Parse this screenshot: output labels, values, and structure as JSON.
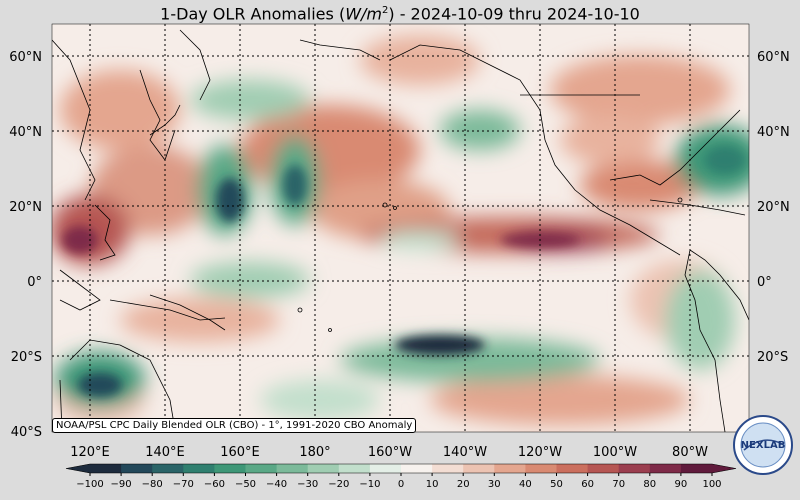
{
  "title": "1-Day OLR Anomalies (W/m²) - 2024-10-09 thru 2024-10-10",
  "title_parts": {
    "prefix": "1-Day OLR Anomalies (",
    "unit_base": "W/m",
    "unit_exp": "2",
    "suffix": ") - 2024-10-09 thru 2024-10-10"
  },
  "credit": "NOAA/PSL CPC Daily Blended OLR (CBO) - 1°, 1991-2020 CBO Anomaly",
  "logo_text": "NEXLAB",
  "lat_labels": [
    "60°N",
    "40°N",
    "20°N",
    "0°",
    "20°S",
    "40°S"
  ],
  "lon_labels": [
    "120°E",
    "140°E",
    "160°E",
    "180°",
    "160°W",
    "140°W",
    "120°W",
    "100°W",
    "80°W"
  ],
  "colorbar": {
    "ticks": [
      "−100",
      "−90",
      "−80",
      "−70",
      "−60",
      "−50",
      "−40",
      "−30",
      "−20",
      "−10",
      "0",
      "10",
      "20",
      "30",
      "40",
      "50",
      "60",
      "70",
      "80",
      "90",
      "100"
    ],
    "colors": [
      "#1d2b3d",
      "#23485a",
      "#2a6468",
      "#2f7f6f",
      "#3e9777",
      "#5aa886",
      "#7cba9a",
      "#a0cdb2",
      "#c2dfcc",
      "#e4efe7",
      "#f7f2ee",
      "#f3ddd3",
      "#ecc3b2",
      "#e4a68f",
      "#d98a72",
      "#cb6f5e",
      "#b65653",
      "#9b3e4f",
      "#7e2a48",
      "#601a3c"
    ]
  },
  "colors": {
    "neutral": "#f6ede8",
    "warm": "#d98a72",
    "warm_strong": "#9b3e4f",
    "cool": "#7cba9a",
    "cool_strong": "#23485a"
  }
}
